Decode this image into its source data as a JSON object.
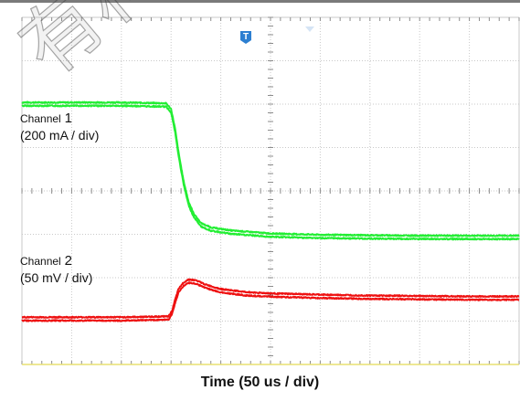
{
  "chart_data": {
    "type": "line",
    "xlabel": "Time (50 us / div)",
    "x_divisions": 10,
    "y_divisions": 8,
    "trigger_marker": "T",
    "series": [
      {
        "name_word": "Channel",
        "name_num": "1",
        "scale": "(200 mA / div)",
        "color": "#22ee33",
        "x": [
          0,
          2.0,
          2.9,
          3.0,
          3.08,
          3.15,
          3.25,
          3.35,
          3.45,
          3.6,
          3.8,
          4.2,
          5.0,
          6.0,
          7.0,
          8.0,
          9.0,
          10.0
        ],
        "y": [
          6.0,
          6.0,
          5.98,
          5.85,
          5.4,
          4.85,
          4.2,
          3.72,
          3.45,
          3.22,
          3.12,
          3.05,
          2.98,
          2.95,
          2.94,
          2.93,
          2.93,
          2.93
        ]
      },
      {
        "name_word": "Channel",
        "name_num": "2",
        "scale": "(50 mV / div)",
        "color": "#ee1111",
        "x": [
          0,
          2.0,
          2.95,
          3.02,
          3.08,
          3.15,
          3.25,
          3.35,
          3.5,
          3.7,
          4.0,
          4.5,
          5.0,
          6.0,
          7.0,
          8.0,
          9.0,
          10.0
        ],
        "y": [
          1.05,
          1.05,
          1.07,
          1.2,
          1.45,
          1.7,
          1.85,
          1.92,
          1.9,
          1.8,
          1.7,
          1.63,
          1.6,
          1.57,
          1.55,
          1.54,
          1.53,
          1.53
        ]
      }
    ]
  },
  "watermark": "有科技有限公司",
  "colors": {
    "grid": "#c9c9c9",
    "axis": "#8c8c8c",
    "trigger": "#2d7fd1"
  }
}
